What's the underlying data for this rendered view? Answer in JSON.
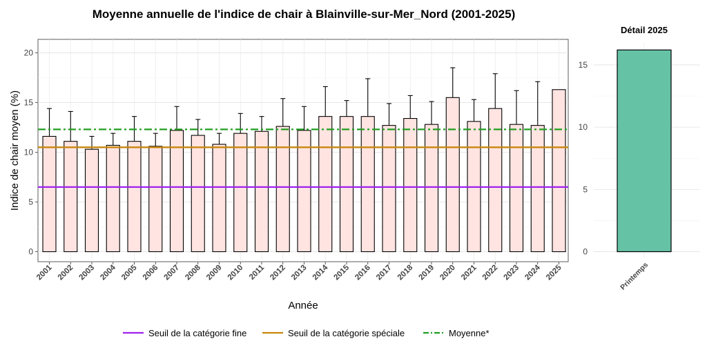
{
  "chart_data": [
    {
      "type": "bar",
      "title": "Moyenne annuelle de l'indice de chair à Blainville-sur-Mer_Nord (2001-2025)",
      "xlabel": "Année",
      "ylabel": "Indice de chair moyen (%)",
      "ylim": [
        0,
        21
      ],
      "yticks": [
        0,
        5,
        10,
        15,
        20
      ],
      "grid": true,
      "categories": [
        "2001",
        "2002",
        "2003",
        "2004",
        "2005",
        "2006",
        "2007",
        "2008",
        "2009",
        "2010",
        "2011",
        "2012",
        "2013",
        "2014",
        "2015",
        "2016",
        "2017",
        "2018",
        "2019",
        "2020",
        "2021",
        "2022",
        "2023",
        "2024",
        "2025"
      ],
      "values": [
        11.6,
        11.1,
        10.3,
        10.7,
        11.1,
        10.6,
        12.2,
        11.7,
        10.8,
        11.9,
        12.1,
        12.6,
        12.2,
        13.6,
        13.6,
        13.6,
        12.7,
        13.4,
        12.8,
        15.5,
        13.1,
        14.4,
        12.8,
        12.7,
        16.3
      ],
      "error_upper": [
        14.4,
        14.1,
        11.6,
        11.9,
        13.6,
        11.9,
        14.6,
        13.3,
        11.9,
        13.9,
        13.6,
        15.4,
        14.6,
        16.6,
        15.2,
        17.4,
        14.9,
        15.7,
        15.1,
        18.5,
        15.3,
        17.9,
        16.2,
        17.1,
        null
      ],
      "reference_lines": [
        {
          "name": "Seuil de la catégorie fine",
          "value": 6.5,
          "color": "#a020f0",
          "style": "solid"
        },
        {
          "name": "Seuil de la catégorie spéciale",
          "value": 10.5,
          "color": "#c8860b",
          "style": "solid"
        },
        {
          "name": "Moyenne*",
          "value": 12.3,
          "color": "#1f9e1f",
          "style": "dashdot"
        }
      ],
      "bar_fill": "#ffe4e1",
      "bar_stroke": "#000000",
      "legend_position": "bottom"
    },
    {
      "type": "bar",
      "title": "Détail 2025",
      "categories": [
        "Printemps"
      ],
      "values": [
        16.2
      ],
      "ylim": [
        0,
        17
      ],
      "yticks": [
        0,
        5,
        10,
        15
      ],
      "bar_fill": "#66c2a5",
      "bar_stroke": "#000000",
      "grid": true
    }
  ]
}
